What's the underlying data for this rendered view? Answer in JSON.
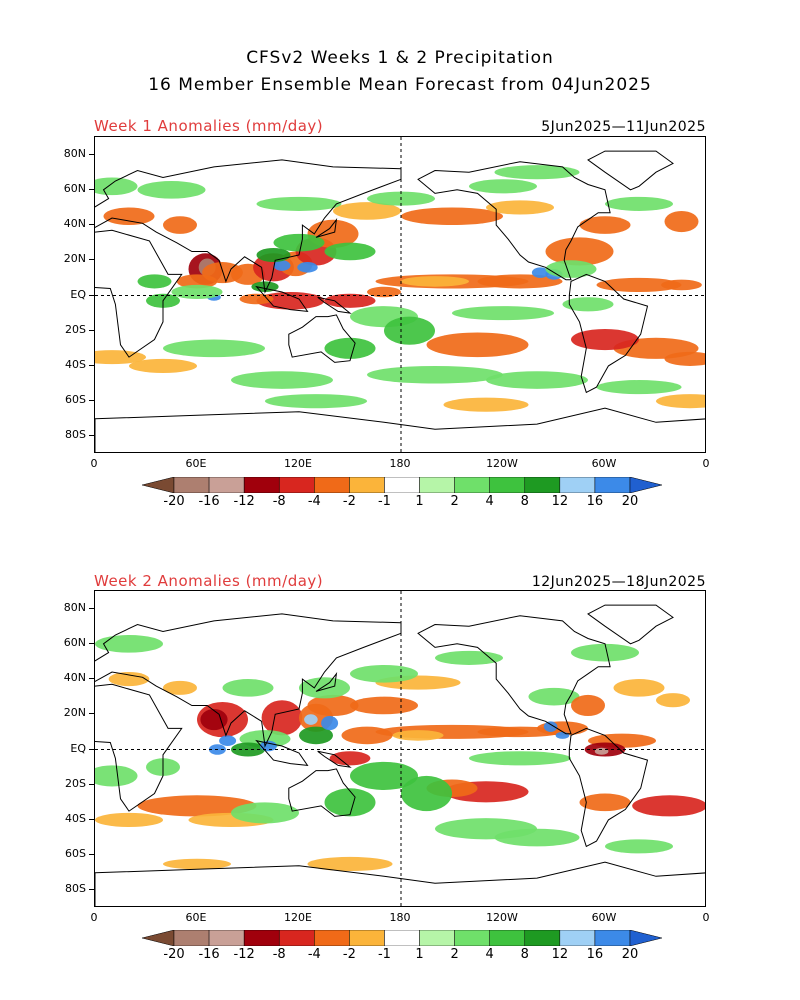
{
  "title_line1": "CFSv2 Weeks 1 & 2 Precipitation",
  "title_line2": "16 Member Ensemble Mean Forecast from 04Jun2025",
  "panels": [
    {
      "label": "Week 1 Anomalies (mm/day)",
      "dates": "5Jun2025—11Jun2025"
    },
    {
      "label": "Week 2 Anomalies (mm/day)",
      "dates": "12Jun2025—18Jun2025"
    }
  ],
  "lat_labels": [
    "80N",
    "60N",
    "40N",
    "20N",
    "EQ",
    "20S",
    "40S",
    "60S",
    "80S"
  ],
  "lon_labels": [
    "0",
    "60E",
    "120E",
    "180",
    "120W",
    "60W",
    "0"
  ],
  "colorbar": {
    "labels": [
      "-20",
      "-16",
      "-12",
      "-8",
      "-4",
      "-2",
      "-1",
      "1",
      "2",
      "4",
      "8",
      "12",
      "16",
      "20"
    ],
    "colors": [
      "#7a4a32",
      "#ad7f70",
      "#c9a097",
      "#a0000c",
      "#d8261f",
      "#f06a18",
      "#fbb43a",
      "#ffffff",
      "#b6f5a8",
      "#6fe06a",
      "#3ec23e",
      "#1e9a22",
      "#9fd0f5",
      "#3c8ae8",
      "#2060d0"
    ]
  }
}
